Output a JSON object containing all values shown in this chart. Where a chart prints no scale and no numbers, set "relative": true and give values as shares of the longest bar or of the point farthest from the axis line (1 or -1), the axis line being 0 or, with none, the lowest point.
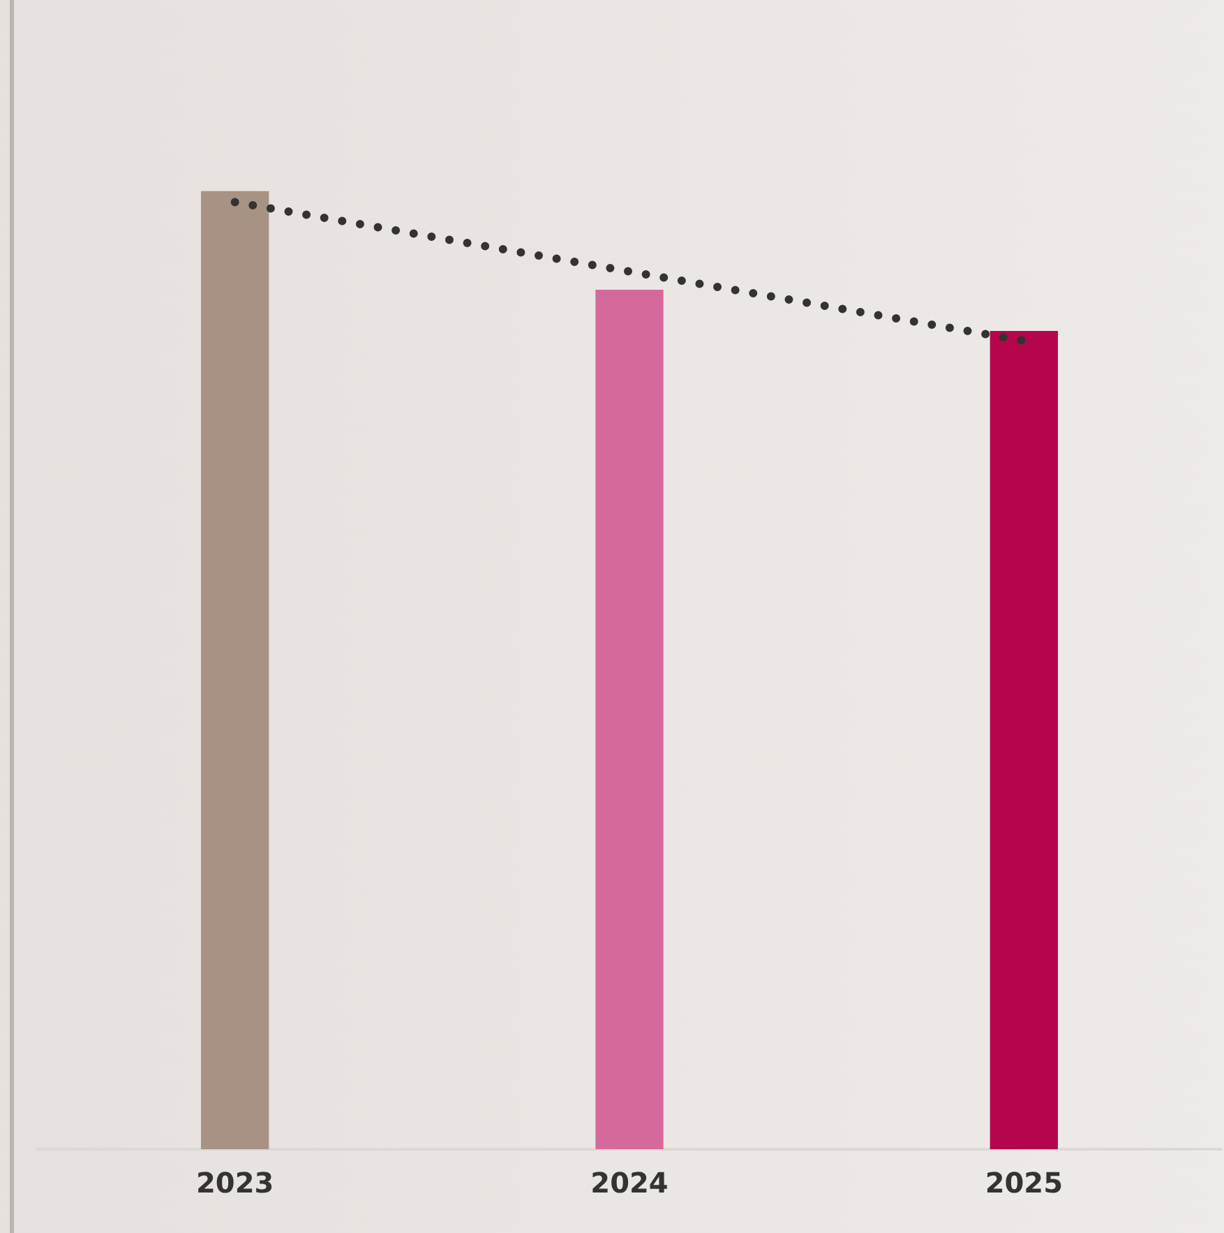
{
  "chart_data": {
    "type": "bar",
    "relative": true,
    "categories": [
      "2023",
      "2024",
      "2025"
    ],
    "series": [
      {
        "colors": [
          "#a89283",
          "#d6699b",
          "#b5064b"
        ],
        "values": [
          1,
          0.897,
          0.854
        ]
      },
      {
        "type": "line",
        "color": "#333333",
        "line_style": "dotted",
        "values": [
          0.989,
          null,
          0.844
        ]
      }
    ],
    "grid": false,
    "legend": false
  }
}
